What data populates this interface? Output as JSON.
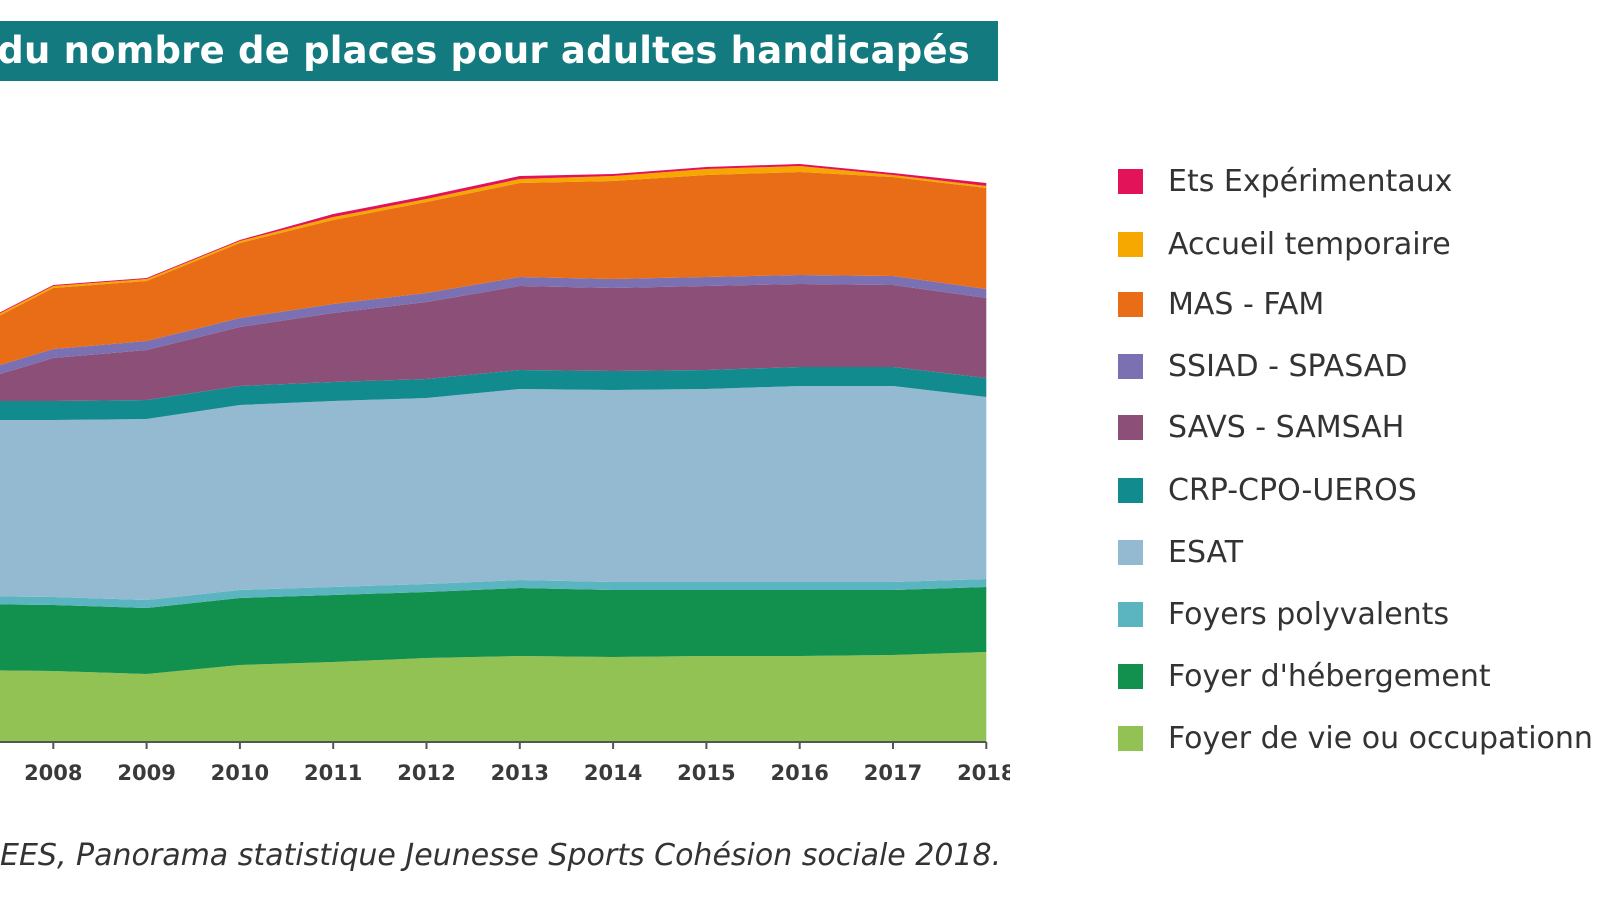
{
  "title": "on du nombre de places pour adultes handicapés",
  "source": "EES, Panorama statistique Jeunesse Sports Cohésion sociale 2018.",
  "chart_data": {
    "type": "area",
    "stacked": true,
    "x": [
      "",
      "2008",
      "2009",
      "2010",
      "2011",
      "2012",
      "2013",
      "2014",
      "2015",
      "2016",
      "2017",
      "2018"
    ],
    "legend_position": "right",
    "grid": false,
    "series": [
      {
        "name": "Foyer de vie ou occupationn",
        "color": "#92c254",
        "values": [
          72,
          71,
          68,
          77,
          80,
          84,
          86,
          85,
          86,
          86,
          87,
          90
        ]
      },
      {
        "name": "Foyer d'hébergement",
        "color": "#12904e",
        "values": [
          66,
          66,
          66,
          67,
          67,
          66,
          68,
          67,
          66,
          66,
          65,
          65
        ]
      },
      {
        "name": "Foyers polyvalents",
        "color": "#5ab5c0",
        "values": [
          8,
          8,
          8,
          8,
          8,
          8,
          8,
          8,
          8,
          8,
          8,
          8
        ]
      },
      {
        "name": "ESAT",
        "color": "#94bad1",
        "values": [
          176,
          177,
          181,
          185,
          186,
          186,
          191,
          192,
          193,
          196,
          196,
          182
        ]
      },
      {
        "name": "CRP-CPO-UEROS",
        "color": "#128b8f",
        "values": [
          19,
          19,
          19,
          19,
          19,
          19,
          19,
          19,
          19,
          19,
          19,
          19
        ]
      },
      {
        "name": "SAVS - SAMSAH",
        "color": "#8c4f78",
        "values": [
          15,
          43,
          50,
          59,
          69,
          77,
          84,
          83,
          84,
          83,
          82,
          80
        ]
      },
      {
        "name": "SSIAD - SPASAD",
        "color": "#7a70b2",
        "values": [
          9,
          9,
          9,
          9,
          9,
          9,
          9,
          9,
          9,
          9,
          9,
          9
        ]
      },
      {
        "name": "MAS - FAM",
        "color": "#e96d17",
        "values": [
          41,
          61,
          60,
          75,
          84,
          91,
          94,
          98,
          102,
          103,
          99,
          101
        ]
      },
      {
        "name": "Accueil temporaire",
        "color": "#f6a800",
        "values": [
          2,
          2,
          2,
          2,
          3,
          3,
          4,
          5,
          6,
          6,
          2,
          2
        ]
      },
      {
        "name": "Ets Expérimentaux",
        "color": "#e3135a",
        "values": [
          1,
          1,
          1,
          1,
          3,
          3,
          3,
          2,
          2,
          2,
          2,
          3
        ]
      }
    ]
  }
}
